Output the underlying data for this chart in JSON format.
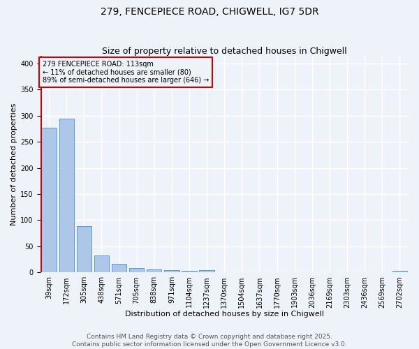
{
  "title": "279, FENCEPIECE ROAD, CHIGWELL, IG7 5DR",
  "subtitle": "Size of property relative to detached houses in Chigwell",
  "xlabel": "Distribution of detached houses by size in Chigwell",
  "ylabel": "Number of detached properties",
  "footer_line1": "Contains HM Land Registry data © Crown copyright and database right 2025.",
  "footer_line2": "Contains public sector information licensed under the Open Government Licence v3.0.",
  "bin_labels": [
    "39sqm",
    "172sqm",
    "305sqm",
    "438sqm",
    "571sqm",
    "705sqm",
    "838sqm",
    "971sqm",
    "1104sqm",
    "1237sqm",
    "1370sqm",
    "1504sqm",
    "1637sqm",
    "1770sqm",
    "1903sqm",
    "2036sqm",
    "2169sqm",
    "2303sqm",
    "2436sqm",
    "2569sqm",
    "2702sqm"
  ],
  "bar_values": [
    277,
    294,
    89,
    33,
    16,
    8,
    6,
    4,
    3,
    4,
    0,
    0,
    0,
    0,
    0,
    0,
    0,
    0,
    0,
    0,
    3
  ],
  "bar_color": "#aec6e8",
  "bar_edge_color": "#5b9bd5",
  "bar_width": 0.85,
  "property_line_color": "#cc0000",
  "property_line_x": -0.44,
  "annotation_text": "279 FENCEPIECE ROAD: 113sqm\n← 11% of detached houses are smaller (80)\n89% of semi-detached houses are larger (646) →",
  "annotation_box_color": "#cc0000",
  "annotation_text_color": "#000000",
  "ylim": [
    0,
    415
  ],
  "yticks": [
    0,
    50,
    100,
    150,
    200,
    250,
    300,
    350,
    400
  ],
  "background_color": "#eef2f9",
  "grid_color": "#ffffff",
  "title_fontsize": 10,
  "subtitle_fontsize": 9,
  "axis_label_fontsize": 8,
  "tick_fontsize": 7,
  "annotation_fontsize": 7,
  "footer_fontsize": 6.5
}
